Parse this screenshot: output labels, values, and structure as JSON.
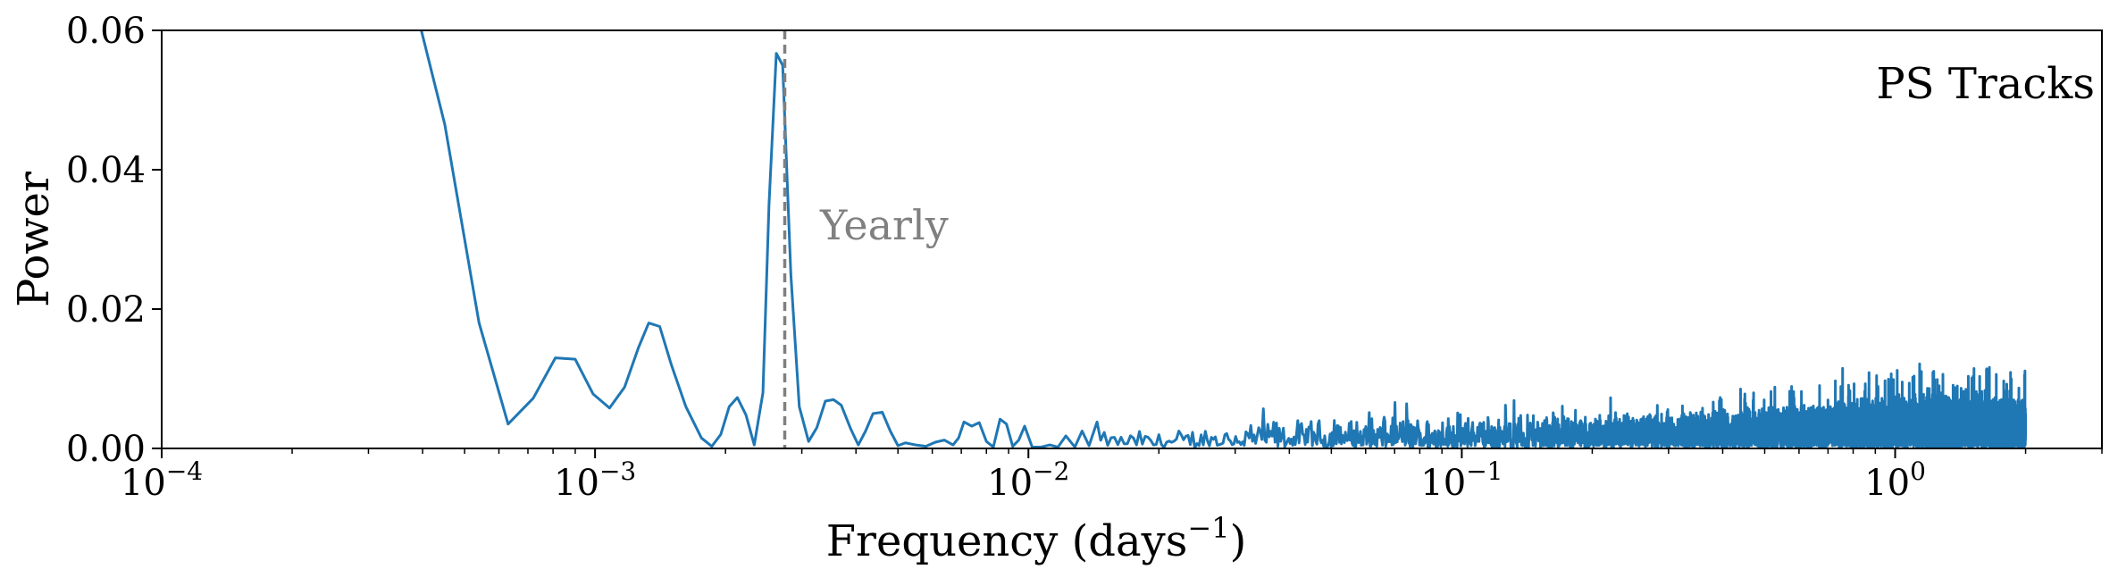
{
  "chart_data": {
    "type": "line",
    "title": "",
    "panel_label": "PS Tracks",
    "xlabel": "Frequency (days",
    "xlabel_sup": "−1",
    "xlabel_suffix": ")",
    "ylabel": "Power",
    "x_scale": "log",
    "xlim": [
      0.0001,
      3.0
    ],
    "ylim": [
      0.0,
      0.06
    ],
    "grid": false,
    "legend": "none",
    "series_color": "#1f77b4",
    "reference_color": "#808080",
    "annotation": {
      "text": "Yearly",
      "x": 0.00274
    },
    "yticks": [
      {
        "value": 0.0,
        "label": "0.00"
      },
      {
        "value": 0.02,
        "label": "0.02"
      },
      {
        "value": 0.04,
        "label": "0.04"
      },
      {
        "value": 0.06,
        "label": "0.06"
      }
    ],
    "xticks": [
      {
        "value": 0.0001,
        "base": "10",
        "exp": "−4"
      },
      {
        "value": 0.001,
        "base": "10",
        "exp": "−3"
      },
      {
        "value": 0.01,
        "base": "10",
        "exp": "−2"
      },
      {
        "value": 0.1,
        "base": "10",
        "exp": "−1"
      },
      {
        "value": 1,
        "base": "10",
        "exp": "0"
      }
    ],
    "series": [
      {
        "x": [
          0.00039,
          0.00045,
          0.00054,
          0.00063,
          0.00072,
          0.00081,
          0.0009,
          0.00099,
          0.00108,
          0.00117,
          0.00126,
          0.00133,
          0.00141,
          0.0015,
          0.00162,
          0.00176,
          0.00186,
          0.00195,
          0.00204,
          0.00213,
          0.00223,
          0.00233,
          0.00244,
          0.00252,
          0.00262,
          0.00271,
          0.00283,
          0.00296,
          0.00311,
          0.00325,
          0.0034,
          0.00355,
          0.0037,
          0.00389,
          0.00405,
          0.00421,
          0.00438,
          0.0046,
          0.0048,
          0.005,
          0.0052,
          0.0055,
          0.0058,
          0.0061,
          0.0064,
          0.0067,
          0.0069,
          0.0071,
          0.0074,
          0.0077,
          0.008,
          0.0083,
          0.0086,
          0.0089,
          0.0092,
          0.0095,
          0.0098,
          0.0102,
          0.0107,
          0.0112,
          0.0117,
          0.0122,
          0.0128,
          0.0133,
          0.0138,
          0.0144
        ],
        "y": [
          0.062,
          0.0465,
          0.018,
          0.0035,
          0.0072,
          0.013,
          0.0128,
          0.0078,
          0.0058,
          0.0088,
          0.0145,
          0.018,
          0.0175,
          0.012,
          0.006,
          0.0015,
          0.0003,
          0.002,
          0.006,
          0.0073,
          0.0048,
          0.0005,
          0.008,
          0.035,
          0.0567,
          0.055,
          0.025,
          0.006,
          0.001,
          0.003,
          0.0068,
          0.007,
          0.0062,
          0.0028,
          0.0005,
          0.0025,
          0.005,
          0.0052,
          0.0025,
          0.0004,
          0.0008,
          0.0005,
          0.0003,
          0.0009,
          0.0012,
          0.0005,
          0.0015,
          0.0038,
          0.0032,
          0.0037,
          0.001,
          0.0002,
          0.0042,
          0.0035,
          0.0003,
          0.0012,
          0.0032,
          0.0002,
          0.0002,
          0.0005,
          0.0002,
          0.0018,
          0.0002,
          0.0025,
          0.0004,
          0.0038
        ],
        "noise_x_range": [
          0.0144,
          2.0
        ],
        "noise_envelope": [
          {
            "x": 0.0144,
            "max": 0.0035
          },
          {
            "x": 0.02,
            "max": 0.004
          },
          {
            "x": 0.04,
            "max": 0.006
          },
          {
            "x": 0.1,
            "max": 0.007
          },
          {
            "x": 0.3,
            "max": 0.0075
          },
          {
            "x": 0.6,
            "max": 0.009
          },
          {
            "x": 1.0,
            "max": 0.0115
          },
          {
            "x": 2.0,
            "max": 0.0105
          }
        ]
      }
    ]
  }
}
